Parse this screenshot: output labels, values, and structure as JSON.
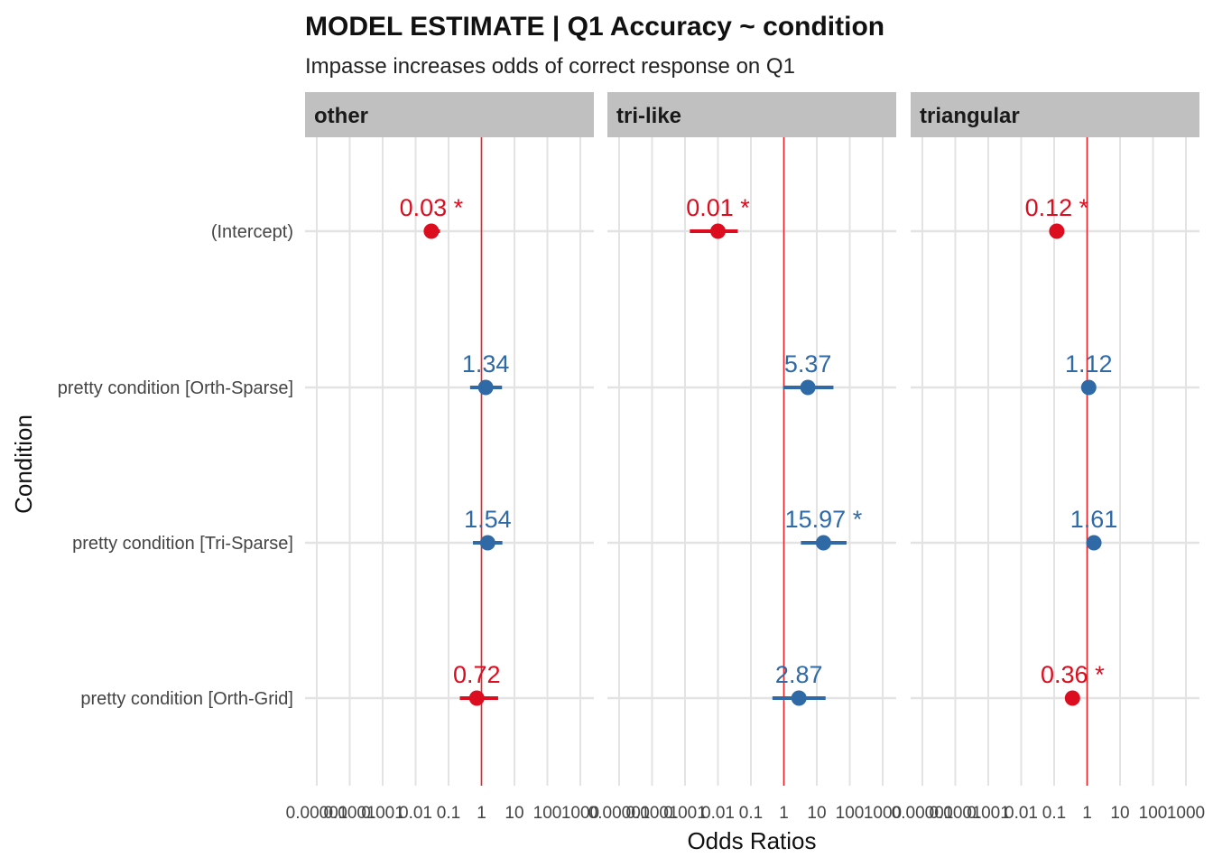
{
  "chart_data": {
    "type": "scatter",
    "title": "MODEL ESTIMATE  | Q1 Accuracy ~ condition",
    "subtitle": "Impasse increases odds of correct response on Q1",
    "xlabel": "Odds Ratios",
    "ylabel": "Condition",
    "x_scale": "log10",
    "x_ticks": [
      1e-05,
      0.0001,
      0.001,
      0.01,
      0.1,
      1,
      10,
      100,
      1000
    ],
    "x_tick_labels": [
      "0.00001",
      "0.0001",
      "0.001",
      "0.01",
      "0.1",
      "1",
      "10",
      "100",
      "1000"
    ],
    "xlim": [
      1e-05,
      1000
    ],
    "reference_line": 1,
    "grid": true,
    "terms": [
      "(Intercept)",
      "pretty condition [Orth-Sparse]",
      "pretty condition [Tri-Sparse]",
      "pretty condition [Orth-Grid]"
    ],
    "colors": {
      "positive": "#2f6aa7",
      "negative": "#dc0d1f",
      "reference": "#e8262b",
      "strip": "#c0c0c0"
    },
    "panels": [
      {
        "name": "other",
        "estimates": [
          {
            "term": "(Intercept)",
            "estimate": 0.03,
            "ci_low": 0.018,
            "ci_high": 0.055,
            "label": "0.03 *"
          },
          {
            "term": "pretty condition [Orth-Sparse]",
            "estimate": 1.34,
            "ci_low": 0.45,
            "ci_high": 4.2,
            "label": "1.34"
          },
          {
            "term": "pretty condition [Tri-Sparse]",
            "estimate": 1.54,
            "ci_low": 0.55,
            "ci_high": 4.3,
            "label": "1.54"
          },
          {
            "term": "pretty condition [Orth-Grid]",
            "estimate": 0.72,
            "ci_low": 0.22,
            "ci_high": 3.2,
            "label": "0.72"
          }
        ]
      },
      {
        "name": "tri-like",
        "estimates": [
          {
            "term": "(Intercept)",
            "estimate": 0.01,
            "ci_low": 0.0014,
            "ci_high": 0.04,
            "label": "0.01 *"
          },
          {
            "term": "pretty condition [Orth-Sparse]",
            "estimate": 5.37,
            "ci_low": 0.95,
            "ci_high": 32,
            "label": "5.37"
          },
          {
            "term": "pretty condition [Tri-Sparse]",
            "estimate": 15.97,
            "ci_low": 3.3,
            "ci_high": 80,
            "label": "15.97 *"
          },
          {
            "term": "pretty condition [Orth-Grid]",
            "estimate": 2.87,
            "ci_low": 0.45,
            "ci_high": 18.5,
            "label": "2.87"
          }
        ]
      },
      {
        "name": "triangular",
        "estimates": [
          {
            "term": "(Intercept)",
            "estimate": 0.12,
            "ci_low": 0.1,
            "ci_high": 0.145,
            "label": "0.12 *"
          },
          {
            "term": "pretty condition [Orth-Sparse]",
            "estimate": 1.12,
            "ci_low": 0.75,
            "ci_high": 1.65,
            "label": "1.12"
          },
          {
            "term": "pretty condition [Tri-Sparse]",
            "estimate": 1.61,
            "ci_low": 1.15,
            "ci_high": 2.2,
            "label": "1.61"
          },
          {
            "term": "pretty condition [Orth-Grid]",
            "estimate": 0.36,
            "ci_low": 0.22,
            "ci_high": 0.6,
            "label": "0.36 *"
          }
        ]
      }
    ]
  }
}
